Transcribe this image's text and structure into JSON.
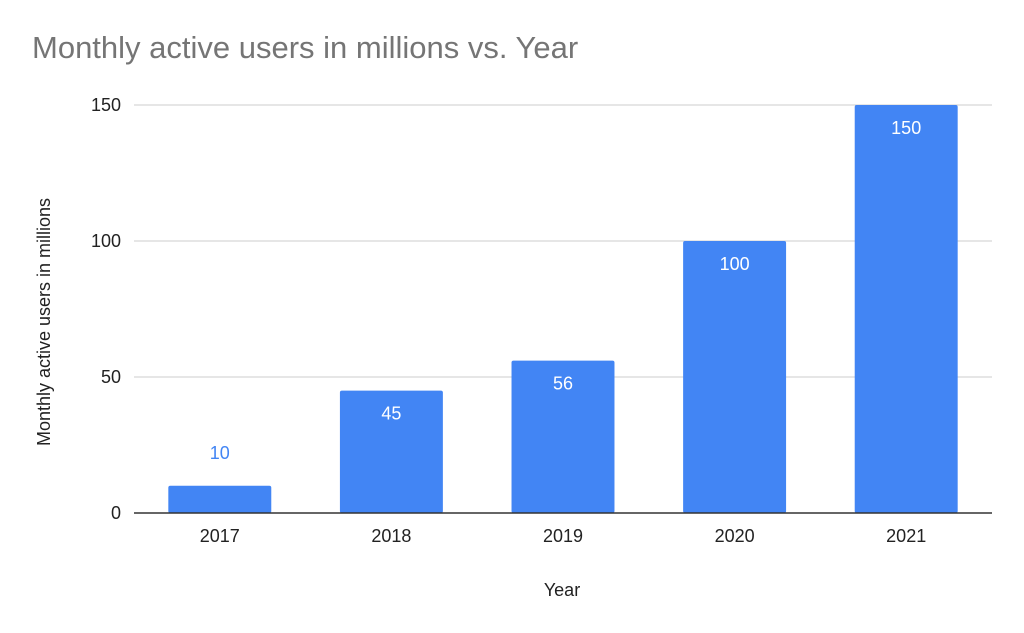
{
  "chart_data": {
    "type": "bar",
    "title": "Monthly active users in millions vs. Year",
    "xlabel": "Year",
    "ylabel": "Monthly active users in millions",
    "categories": [
      "2017",
      "2018",
      "2019",
      "2020",
      "2021"
    ],
    "values": [
      10,
      45,
      56,
      100,
      150
    ],
    "data_labels": [
      "10",
      "45",
      "56",
      "100",
      "150"
    ],
    "ylim": [
      0,
      150
    ],
    "yticks": [
      0,
      50,
      100,
      150
    ],
    "ytick_labels": [
      "0",
      "50",
      "100",
      "150"
    ],
    "grid": true,
    "legend": "none",
    "colors": {
      "bar": "#4285f4",
      "label_inside": "#ffffff",
      "label_outside": "#4285f4",
      "grid": "#cccccc",
      "axis": "#333333"
    }
  }
}
